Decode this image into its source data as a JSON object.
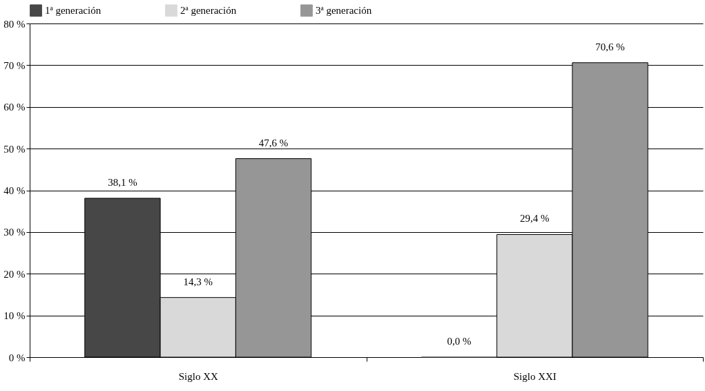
{
  "chart_data": {
    "type": "bar",
    "categories": [
      "Siglo XX",
      "Siglo XXI"
    ],
    "series": [
      {
        "name": "1ª generación",
        "color": "#474747",
        "values": [
          38.1,
          0.0
        ],
        "value_labels": [
          "38,1 %",
          "0,0 %"
        ]
      },
      {
        "name": "2ª generación",
        "color": "#d9d9d9",
        "values": [
          14.3,
          29.4
        ],
        "value_labels": [
          "14,3 %",
          "29,4 %"
        ]
      },
      {
        "name": "3ª generación",
        "color": "#969696",
        "values": [
          47.6,
          70.6
        ],
        "value_labels": [
          "47,6 %",
          "70,6 %"
        ]
      }
    ],
    "ylim": [
      0,
      80
    ],
    "yticks": [
      {
        "value": 0,
        "label": "0 %"
      },
      {
        "value": 10,
        "label": "10 %"
      },
      {
        "value": 20,
        "label": "20 %"
      },
      {
        "value": 30,
        "label": "30 %"
      },
      {
        "value": 40,
        "label": "40 %"
      },
      {
        "value": 50,
        "label": "50 %"
      },
      {
        "value": 60,
        "label": "60 %"
      },
      {
        "value": 70,
        "label": "70 %"
      },
      {
        "value": 80,
        "label": "80 %"
      }
    ],
    "grid": "y",
    "legend": "top"
  }
}
